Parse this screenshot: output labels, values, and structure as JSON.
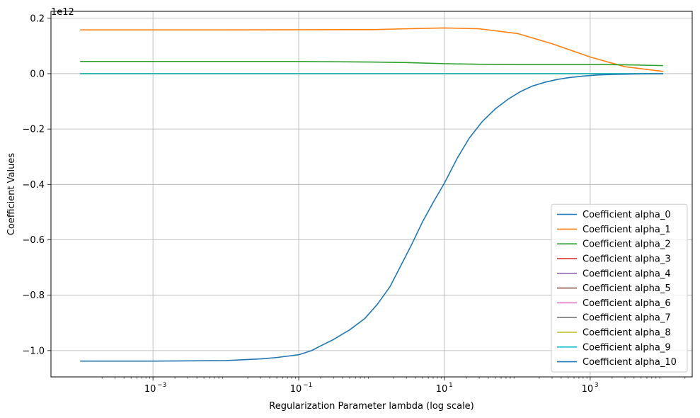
{
  "chart_data": {
    "type": "line",
    "title": "",
    "xlabel": "Regularization Parameter lambda (log scale)",
    "ylabel": "Coefficient Values",
    "y_offset_label": "1e12",
    "x_scale": "log",
    "xlim": [
      0.0001,
      10000
    ],
    "ylim": [
      -1.095,
      0.225
    ],
    "grid": true,
    "legend_position": "lower-right",
    "x_ticks": [
      {
        "value": 0.001,
        "label": "10",
        "exp": "−3"
      },
      {
        "value": 0.1,
        "label": "10",
        "exp": "−1"
      },
      {
        "value": 10,
        "label": "10",
        "exp": "1"
      },
      {
        "value": 1000,
        "label": "10",
        "exp": "3"
      }
    ],
    "y_ticks": [
      {
        "value": 0.2,
        "label": "0.2"
      },
      {
        "value": 0.0,
        "label": "0.0"
      },
      {
        "value": -0.2,
        "label": "−0.2"
      },
      {
        "value": -0.4,
        "label": "−0.4"
      },
      {
        "value": -0.6,
        "label": "−0.6"
      },
      {
        "value": -0.8,
        "label": "−0.8"
      },
      {
        "value": -1.0,
        "label": "−1.0"
      }
    ],
    "series": [
      {
        "name": "Coefficient alpha_0",
        "color": "#1f77b4",
        "x": [
          0.0001,
          10000
        ],
        "y": [
          0.0,
          0.0
        ]
      },
      {
        "name": "Coefficient alpha_1",
        "color": "#ff7f0e",
        "x": [
          0.0001,
          0.01,
          1,
          3,
          10,
          30,
          100,
          300,
          1000,
          3000,
          10000
        ],
        "y": [
          0.158,
          0.158,
          0.159,
          0.162,
          0.165,
          0.162,
          0.145,
          0.108,
          0.06,
          0.025,
          0.008
        ]
      },
      {
        "name": "Coefficient alpha_2",
        "color": "#2ca02c",
        "x": [
          0.0001,
          0.1,
          1,
          3,
          10,
          30,
          100,
          1000,
          3000,
          10000
        ],
        "y": [
          0.044,
          0.044,
          0.042,
          0.04,
          0.036,
          0.034,
          0.033,
          0.033,
          0.032,
          0.029
        ]
      },
      {
        "name": "Coefficient alpha_3",
        "color": "#d62728",
        "x": [
          0.0001,
          10000
        ],
        "y": [
          0.0,
          0.0
        ]
      },
      {
        "name": "Coefficient alpha_4",
        "color": "#9467bd",
        "x": [
          0.0001,
          10000
        ],
        "y": [
          0.0,
          0.0
        ]
      },
      {
        "name": "Coefficient alpha_5",
        "color": "#8c564b",
        "x": [
          0.0001,
          10000
        ],
        "y": [
          0.0,
          0.0
        ]
      },
      {
        "name": "Coefficient alpha_6",
        "color": "#e377c2",
        "x": [
          0.0001,
          10000
        ],
        "y": [
          0.0,
          0.0
        ]
      },
      {
        "name": "Coefficient alpha_7",
        "color": "#7f7f7f",
        "x": [
          0.0001,
          10000
        ],
        "y": [
          0.0,
          0.0
        ]
      },
      {
        "name": "Coefficient alpha_8",
        "color": "#bcbd22",
        "x": [
          0.0001,
          10000
        ],
        "y": [
          0.0,
          0.0
        ]
      },
      {
        "name": "Coefficient alpha_9",
        "color": "#17becf",
        "x": [
          0.0001,
          10000
        ],
        "y": [
          0.0,
          0.0
        ]
      },
      {
        "name": "Coefficient alpha_10",
        "color": "#1f77b4",
        "x": [
          0.0001,
          0.001,
          0.01,
          0.03,
          0.05,
          0.1,
          0.15,
          0.2,
          0.3,
          0.5,
          0.8,
          1.2,
          1.8,
          2.5,
          3.5,
          5,
          7,
          10,
          15,
          22,
          33,
          50,
          75,
          110,
          160,
          240,
          350,
          520,
          800,
          1200,
          2000,
          3000,
          5000,
          10000
        ],
        "y": [
          -1.038,
          -1.038,
          -1.036,
          -1.03,
          -1.025,
          -1.015,
          -1.0,
          -0.983,
          -0.96,
          -0.925,
          -0.885,
          -0.833,
          -0.768,
          -0.695,
          -0.62,
          -0.535,
          -0.465,
          -0.395,
          -0.305,
          -0.232,
          -0.173,
          -0.127,
          -0.092,
          -0.065,
          -0.045,
          -0.031,
          -0.021,
          -0.014,
          -0.009,
          -0.005,
          -0.003,
          -0.002,
          -0.001,
          -0.0005
        ]
      }
    ]
  }
}
